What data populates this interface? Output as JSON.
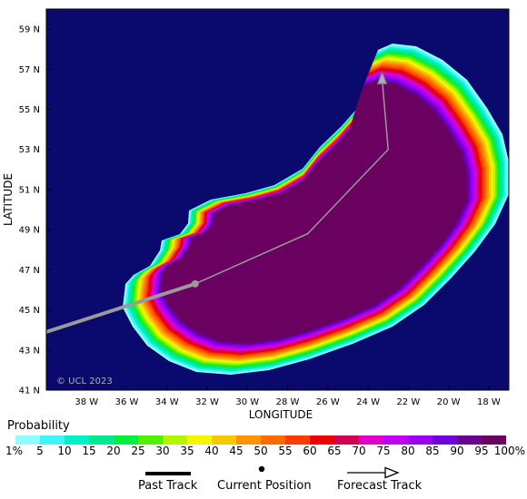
{
  "map": {
    "background_color": "#0a0a6e",
    "land_color": "#ffffff",
    "x_axis_label": "LONGITUDE",
    "y_axis_label": "LATITUDE",
    "lon_ticks": [
      "38 W",
      "36 W",
      "34 W",
      "32 W",
      "30 W",
      "28 W",
      "26 W",
      "24 W",
      "22 W",
      "20 W",
      "18 W"
    ],
    "lat_ticks": [
      "59 N",
      "57 N",
      "55 N",
      "53 N",
      "51 N",
      "49 N",
      "47 N",
      "45 N",
      "43 N",
      "41 N"
    ],
    "watermark": "© UCL 2023",
    "track_color": "#9a9a9a",
    "past_track": {
      "lon": [
        -40.0,
        -32.6
      ],
      "lat": [
        43.9,
        46.3
      ]
    },
    "current_position": {
      "lon": -32.6,
      "lat": 46.3
    },
    "forecast_track": {
      "lon": [
        -32.6,
        -27.0,
        -23.0,
        -23.3
      ],
      "lat": [
        46.3,
        48.8,
        53.0,
        56.5
      ]
    }
  },
  "legend": {
    "title": "Probability",
    "labels": [
      "1%",
      "5",
      "10",
      "15",
      "20",
      "25",
      "30",
      "35",
      "40",
      "45",
      "50",
      "55",
      "60",
      "65",
      "70",
      "75",
      "80",
      "85",
      "90",
      "95",
      "100%"
    ],
    "colors": [
      "#8ffcff",
      "#40f5f5",
      "#00f0c8",
      "#00e890",
      "#00f040",
      "#50f000",
      "#b4f500",
      "#f5f500",
      "#f5c800",
      "#ff9400",
      "#ff6a00",
      "#ff3c00",
      "#f00000",
      "#d00050",
      "#e000c8",
      "#c000f0",
      "#9a00f0",
      "#7000d8",
      "#6a0090",
      "#6a0060"
    ],
    "key": {
      "past_track": "Past Track",
      "current_position": "Current Position",
      "forecast_track": "Forecast Track"
    }
  }
}
